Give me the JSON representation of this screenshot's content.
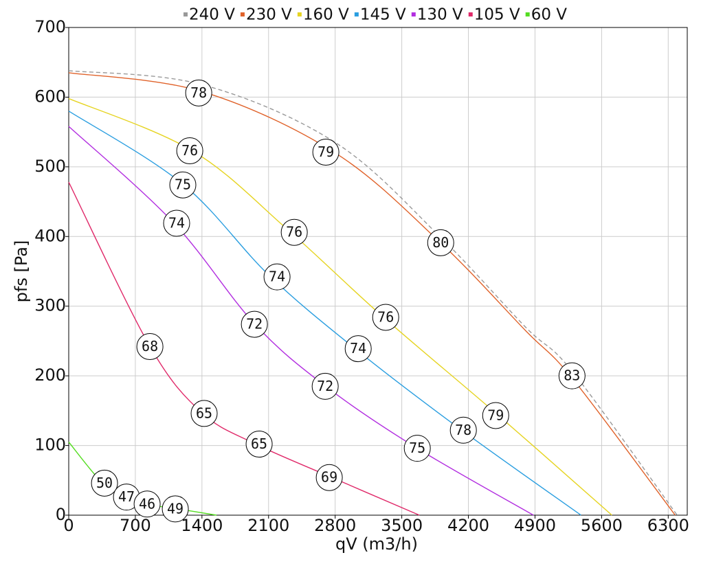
{
  "chart_data": {
    "type": "line",
    "x_label": "qV (m3/h)",
    "y_label": "pfs [Pa]",
    "xlim": [
      0,
      6500
    ],
    "ylim": [
      0,
      700
    ],
    "xticks": [
      0,
      700,
      1400,
      2100,
      2800,
      3500,
      4200,
      4900,
      5600,
      6300
    ],
    "yticks": [
      0,
      100,
      200,
      300,
      400,
      500,
      600,
      700
    ],
    "grid": true,
    "legend": "top",
    "series": [
      {
        "name": "240 V",
        "color": "#999999",
        "dashed": true,
        "x": [
          0,
          1400,
          2800,
          3900,
          4800,
          5300,
          6394
        ],
        "values": [
          638,
          618,
          535,
          400,
          270,
          205,
          0
        ]
      },
      {
        "name": "230 V",
        "color": "#e0622a",
        "x": [
          0,
          1400,
          2800,
          3900,
          4800,
          5300,
          6373
        ],
        "values": [
          635,
          608,
          520,
          392,
          265,
          195,
          0
        ]
      },
      {
        "name": "160 V",
        "color": "#e6d422",
        "x": [
          0,
          1300,
          2300,
          3300,
          4500,
          5708
        ],
        "values": [
          598,
          523,
          410,
          285,
          145,
          0
        ]
      },
      {
        "name": "145 V",
        "color": "#2a9ee0",
        "x": [
          0,
          1200,
          2100,
          3000,
          4100,
          5383
        ],
        "values": [
          580,
          475,
          345,
          240,
          125,
          0
        ]
      },
      {
        "name": "130 V",
        "color": "#b22ee0",
        "x": [
          0,
          1100,
          1950,
          2700,
          3650,
          4884
        ],
        "values": [
          558,
          420,
          275,
          185,
          97,
          0
        ]
      },
      {
        "name": "105 V",
        "color": "#e02a6a",
        "x": [
          0,
          850,
          1400,
          1950,
          2750,
          3685
        ],
        "values": [
          478,
          243,
          147,
          103,
          55,
          0
        ]
      },
      {
        "name": "60 V",
        "color": "#55dd22",
        "x": [
          0,
          350,
          600,
          800,
          1100,
          1553
        ],
        "values": [
          105,
          47,
          27,
          16,
          10,
          0
        ]
      }
    ],
    "annotations": [
      {
        "x": 1366,
        "y": 606,
        "text": 78
      },
      {
        "x": 2702,
        "y": 521,
        "text": 79
      },
      {
        "x": 3909,
        "y": 391,
        "text": 80
      },
      {
        "x": 5289,
        "y": 200,
        "text": 83
      },
      {
        "x": 1272,
        "y": 523,
        "text": 76
      },
      {
        "x": 2370,
        "y": 406,
        "text": 76
      },
      {
        "x": 3331,
        "y": 284,
        "text": 76
      },
      {
        "x": 4487,
        "y": 143,
        "text": 79
      },
      {
        "x": 1199,
        "y": 474,
        "text": 75
      },
      {
        "x": 2189,
        "y": 342,
        "text": 74
      },
      {
        "x": 3042,
        "y": 239,
        "text": 74
      },
      {
        "x": 4147,
        "y": 122,
        "text": 78
      },
      {
        "x": 1134,
        "y": 419,
        "text": 74
      },
      {
        "x": 1951,
        "y": 274,
        "text": 72
      },
      {
        "x": 2695,
        "y": 185,
        "text": 72
      },
      {
        "x": 3663,
        "y": 96,
        "text": 75
      },
      {
        "x": 853,
        "y": 242,
        "text": 68
      },
      {
        "x": 1423,
        "y": 146,
        "text": 65
      },
      {
        "x": 2001,
        "y": 102,
        "text": 65
      },
      {
        "x": 2738,
        "y": 54,
        "text": 69
      },
      {
        "x": 376,
        "y": 46,
        "text": 50
      },
      {
        "x": 607,
        "y": 26,
        "text": 47
      },
      {
        "x": 824,
        "y": 16,
        "text": 46
      },
      {
        "x": 1120,
        "y": 9,
        "text": 49
      }
    ]
  }
}
